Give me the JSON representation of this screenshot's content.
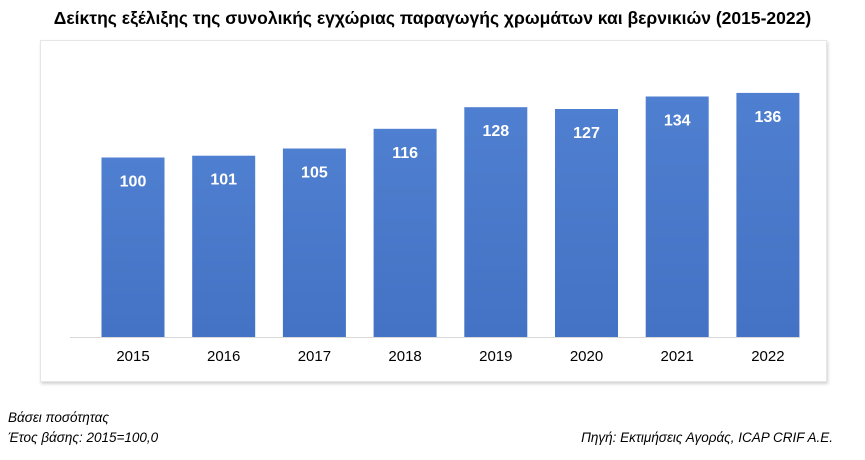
{
  "title": "Δείκτης εξέλιξης της συνολικής εγχώριας παραγωγής χρωμάτων και βερνικιών (2015-2022)",
  "notes": {
    "basis": "Βάσει ποσότητας",
    "base_year": "Έτος βάσης: 2015=100,0",
    "source": "Πηγή: Εκτιμήσεις Αγοράς, ICAP CRIF A.E."
  },
  "colors": {
    "bar": "#4472C4",
    "bar_top": "#4F7FD0",
    "label": "#ffffff",
    "axis": "#d9d9d9"
  },
  "chart_data": {
    "type": "bar",
    "title": "Δείκτης εξέλιξης της συνολικής εγχώριας παραγωγής χρωμάτων και βερνικιών (2015-2022)",
    "categories": [
      "2015",
      "2016",
      "2017",
      "2018",
      "2019",
      "2020",
      "2021",
      "2022"
    ],
    "values": [
      100,
      101,
      105,
      116,
      128,
      127,
      134,
      136
    ],
    "data_labels": [
      "100",
      "101",
      "105",
      "116",
      "128",
      "127",
      "134",
      "136"
    ],
    "xlabel": "",
    "ylabel": "",
    "y_axis_visible": false,
    "grid": false,
    "legend": "none"
  }
}
